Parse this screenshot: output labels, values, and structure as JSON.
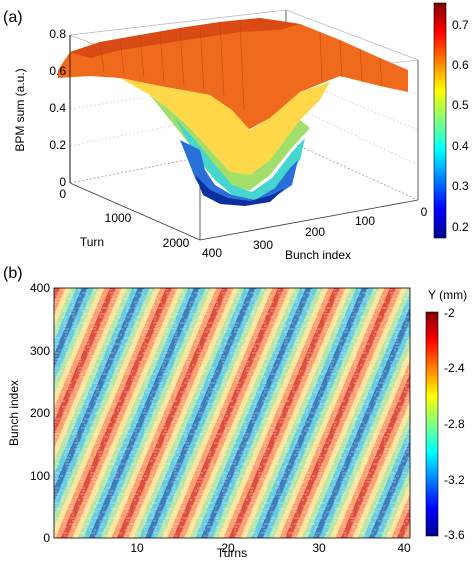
{
  "chart_data": [
    {
      "type": "surface",
      "panel_label": "(a)",
      "xlabel": "Bunch index",
      "ylabel": "Turn",
      "zlabel": "BPM sum (a.u.)",
      "x_ticks": [
        "400",
        "300",
        "200",
        "100",
        "0"
      ],
      "y_ticks": [
        "0",
        "1000",
        "2000"
      ],
      "z_ticks": [
        "0",
        "0.2",
        "0.4",
        "0.6",
        "0.8"
      ],
      "xlim": [
        0,
        400
      ],
      "ylim": [
        0,
        2500
      ],
      "zlim": [
        0,
        0.8
      ],
      "colorbar": {
        "ticks": [
          "0.7",
          "0.6",
          "0.5",
          "0.4",
          "0.3",
          "0.2"
        ],
        "range": [
          0.17,
          0.75
        ],
        "colormap": "jet"
      },
      "description_values": {
        "plateau": 0.62,
        "minimum": 0.18,
        "minimum_bunch": 280,
        "minimum_turn": 300
      }
    },
    {
      "type": "heatmap",
      "panel_label": "(b)",
      "xlabel": "Turns",
      "ylabel": "Bunch index",
      "x_ticks": [
        "10",
        "20",
        "30",
        "40"
      ],
      "y_ticks": [
        "0",
        "100",
        "200",
        "300",
        "400"
      ],
      "xlim": [
        1,
        40
      ],
      "ylim": [
        0,
        400
      ],
      "colorbar": {
        "title": "Y (mm)",
        "ticks": [
          "-2",
          "-2.4",
          "-2.8",
          "-3.2",
          "-3.6"
        ],
        "range": [
          -3.6,
          -2.0
        ],
        "colormap": "jet"
      }
    }
  ]
}
